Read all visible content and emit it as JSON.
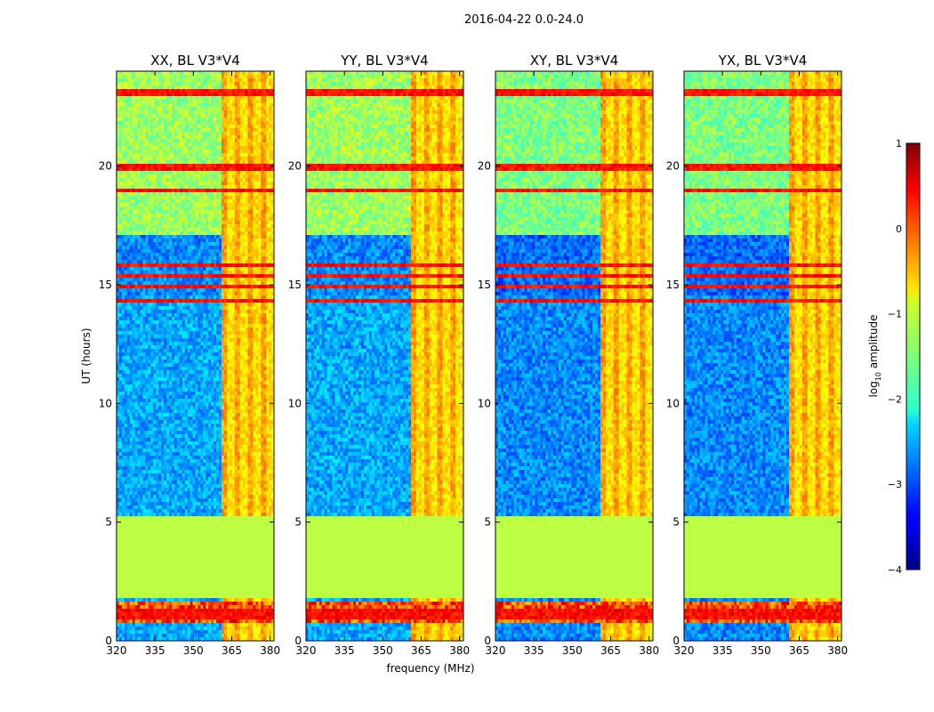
{
  "suptitle": "2016-04-22 0.0-24.0",
  "xlabel": "frequency (MHz)",
  "ylabel": "UT (hours)",
  "chart_data": {
    "type": "heatmap",
    "title": "2016-04-22 0.0-24.0",
    "xlabel": "frequency (MHz)",
    "ylabel": "UT (hours)",
    "xlim": [
      320,
      381.5
    ],
    "ylim": [
      0,
      24
    ],
    "xticks": [
      "320",
      "335",
      "350",
      "365",
      "380"
    ],
    "yticks": [
      "0",
      "5",
      "10",
      "15",
      "20"
    ],
    "panels": [
      {
        "title": "XX, BL V3*V4",
        "pol": "XX"
      },
      {
        "title": "YY, BL V3*V4",
        "pol": "YY"
      },
      {
        "title": "XY, BL V3*V4",
        "pol": "XY"
      },
      {
        "title": "YX, BL V3*V4",
        "pol": "YX"
      }
    ],
    "colorbar": {
      "label": "log10 amplitude",
      "label_base": "log",
      "label_sub": "10",
      "label_rest": " amplitude",
      "range": [
        -4,
        1
      ],
      "ticks": [
        "1",
        "0",
        "−1",
        "−2",
        "−3",
        "−4"
      ],
      "colormap": "jet"
    },
    "features": {
      "rfi_band_mhz": [
        361,
        381
      ],
      "flagged_band_hours": [
        1.8,
        5.3
      ],
      "flagged_value": -1.2,
      "background_high_hours": [
        17.1,
        24
      ],
      "background_mid_hours": [
        14.6,
        17.1
      ],
      "background_low_hours": [
        0,
        14.6
      ]
    }
  }
}
